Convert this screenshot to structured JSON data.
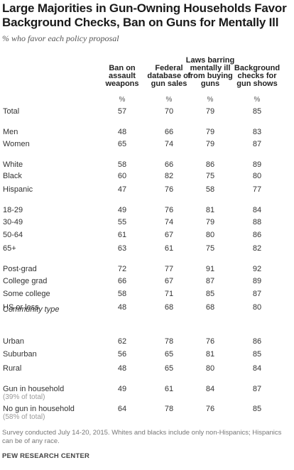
{
  "title": "Large Majorities in Gun-Owning Households Favor Background Checks, Ban on Guns for Mentally Ill",
  "subtitle": "% who favor each policy proposal",
  "columns": [
    [
      "Ban on",
      "assault",
      "weapons"
    ],
    [
      "Federal",
      "database of",
      "gun sales"
    ],
    [
      "Laws barring",
      "mentally ill",
      "from buying",
      "guns"
    ],
    [
      "Background",
      "checks for",
      "gun shows"
    ]
  ],
  "pct_label": "%",
  "section_community": "Community type",
  "note": "Survey conducted July 14-20, 2015.  Whites and blacks include only non-Hispanics; Hispanics can be of any race.",
  "source": "PEW RESEARCH CENTER",
  "chart_data": {
    "type": "table",
    "columns": [
      "Ban on assault weapons",
      "Federal database of gun sales",
      "Laws barring mentally ill from buying guns",
      "Background checks for gun shows"
    ],
    "rows": [
      {
        "label": "Total",
        "values": [
          57,
          70,
          79,
          85
        ]
      },
      {
        "label": "Men",
        "values": [
          48,
          66,
          79,
          83
        ]
      },
      {
        "label": "Women",
        "values": [
          65,
          74,
          79,
          87
        ]
      },
      {
        "label": "White",
        "values": [
          58,
          66,
          86,
          89
        ]
      },
      {
        "label": "Black",
        "values": [
          60,
          82,
          75,
          80
        ]
      },
      {
        "label": "Hispanic",
        "values": [
          47,
          76,
          58,
          77
        ]
      },
      {
        "label": "18-29",
        "values": [
          49,
          76,
          81,
          84
        ]
      },
      {
        "label": "30-49",
        "values": [
          55,
          74,
          79,
          88
        ]
      },
      {
        "label": "50-64",
        "values": [
          61,
          67,
          80,
          86
        ]
      },
      {
        "label": "65+",
        "values": [
          63,
          61,
          75,
          82
        ]
      },
      {
        "label": "Post-grad",
        "values": [
          72,
          77,
          91,
          92
        ]
      },
      {
        "label": "College grad",
        "values": [
          66,
          67,
          87,
          89
        ]
      },
      {
        "label": "Some college",
        "values": [
          58,
          71,
          85,
          87
        ]
      },
      {
        "label": "HS or less",
        "values": [
          48,
          68,
          68,
          80
        ]
      },
      {
        "label": "Urban",
        "values": [
          62,
          78,
          76,
          86
        ]
      },
      {
        "label": "Suburban",
        "values": [
          56,
          65,
          81,
          85
        ]
      },
      {
        "label": "Rural",
        "values": [
          48,
          65,
          80,
          84
        ]
      },
      {
        "label": "Gun in household",
        "sublabel": "(39% of total)",
        "values": [
          49,
          61,
          84,
          87
        ]
      },
      {
        "label": "No gun in household",
        "sublabel": "(58% of total)",
        "values": [
          64,
          78,
          76,
          85
        ]
      }
    ]
  }
}
